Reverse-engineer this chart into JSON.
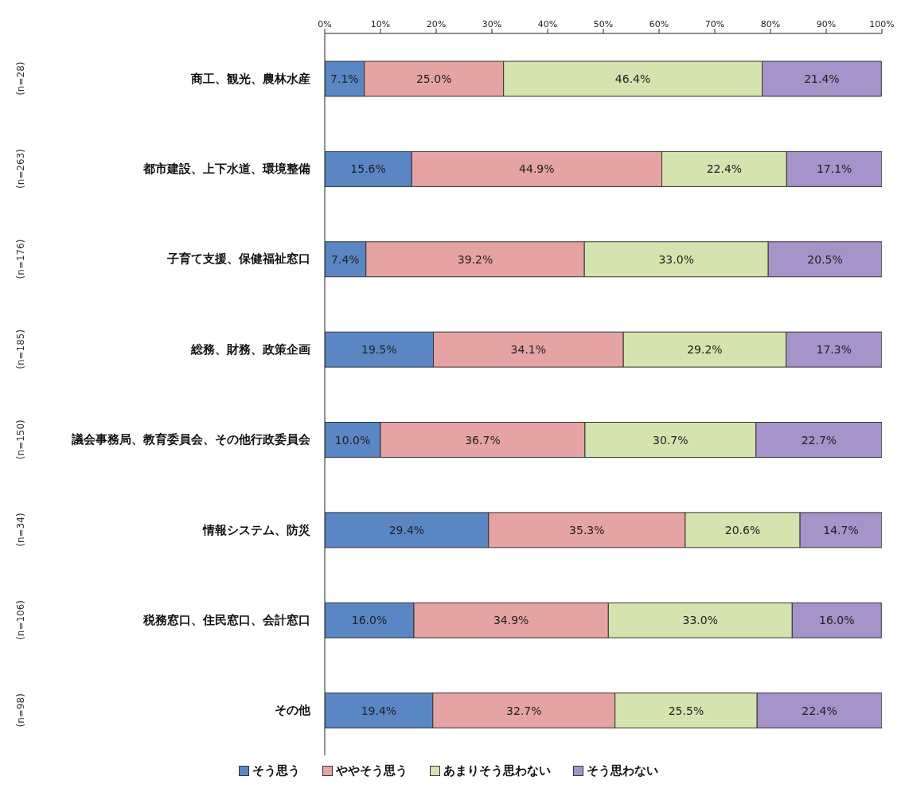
{
  "chart_data": {
    "type": "bar",
    "orientation": "horizontal",
    "stacked": true,
    "categories": [
      "商工、観光、農林水産",
      "都市建設、上下水道、環境整備",
      "子育て支援、保健福祉窓口",
      "総務、財務、政策企画",
      "議会事務局、教育委員会、その他行政委員会",
      "情報システム、防災",
      "税務窓口、住民窓口、会計窓口",
      "その他"
    ],
    "series": [
      {
        "name": "そう思う",
        "color": "#5a86c4",
        "values": [
          7.1,
          15.6,
          7.4,
          19.5,
          10.0,
          29.4,
          16.0,
          19.4
        ],
        "value_labels": [
          "7.1%",
          "15.6%",
          "7.4%",
          "19.5%",
          "10.0%",
          "29.4%",
          "16.0%",
          "19.4%"
        ]
      },
      {
        "name": "ややそう思う",
        "color": "#e6a3a3",
        "values": [
          25.0,
          44.9,
          39.2,
          34.1,
          36.7,
          35.3,
          34.9,
          32.7
        ],
        "value_labels": [
          "25.0%",
          "44.9%",
          "39.2%",
          "34.1%",
          "36.7%",
          "35.3%",
          "34.9%",
          "32.7%"
        ]
      },
      {
        "name": "あまりそう思わない",
        "color": "#d5e3ae",
        "values": [
          46.4,
          22.4,
          33.0,
          29.2,
          30.7,
          20.6,
          33.0,
          25.5
        ],
        "value_labels": [
          "46.4%",
          "22.4%",
          "33.0%",
          "29.2%",
          "30.7%",
          "20.6%",
          "33.0%",
          "25.5%"
        ]
      },
      {
        "name": "そう思わない",
        "color": "#a593c9",
        "values": [
          21.4,
          17.1,
          20.5,
          17.3,
          22.7,
          14.7,
          16.0,
          22.4
        ],
        "value_labels": [
          "21.4%",
          "17.1%",
          "20.5%",
          "17.3%",
          "22.7%",
          "14.7%",
          "16.0%",
          "22.4%"
        ]
      }
    ],
    "xlim": [
      0,
      100
    ],
    "xticks": [
      {
        "value": 0,
        "label": "0%"
      },
      {
        "value": 10,
        "label": "10%"
      },
      {
        "value": 20,
        "label": "20%"
      },
      {
        "value": 30,
        "label": "30%"
      },
      {
        "value": 40,
        "label": "40%"
      },
      {
        "value": 50,
        "label": "50%"
      },
      {
        "value": 60,
        "label": "60%"
      },
      {
        "value": 70,
        "label": "70%"
      },
      {
        "value": 80,
        "label": "80%"
      },
      {
        "value": 90,
        "label": "90%"
      },
      {
        "value": 100,
        "label": "100%"
      }
    ],
    "annotations": [
      "(n=28)",
      "(n=263)",
      "(n=176)",
      "(n=185)",
      "(n=150)",
      "(n=34)",
      "(n=106)",
      "(n=98)"
    ],
    "grid": false,
    "legend": "bottom"
  }
}
